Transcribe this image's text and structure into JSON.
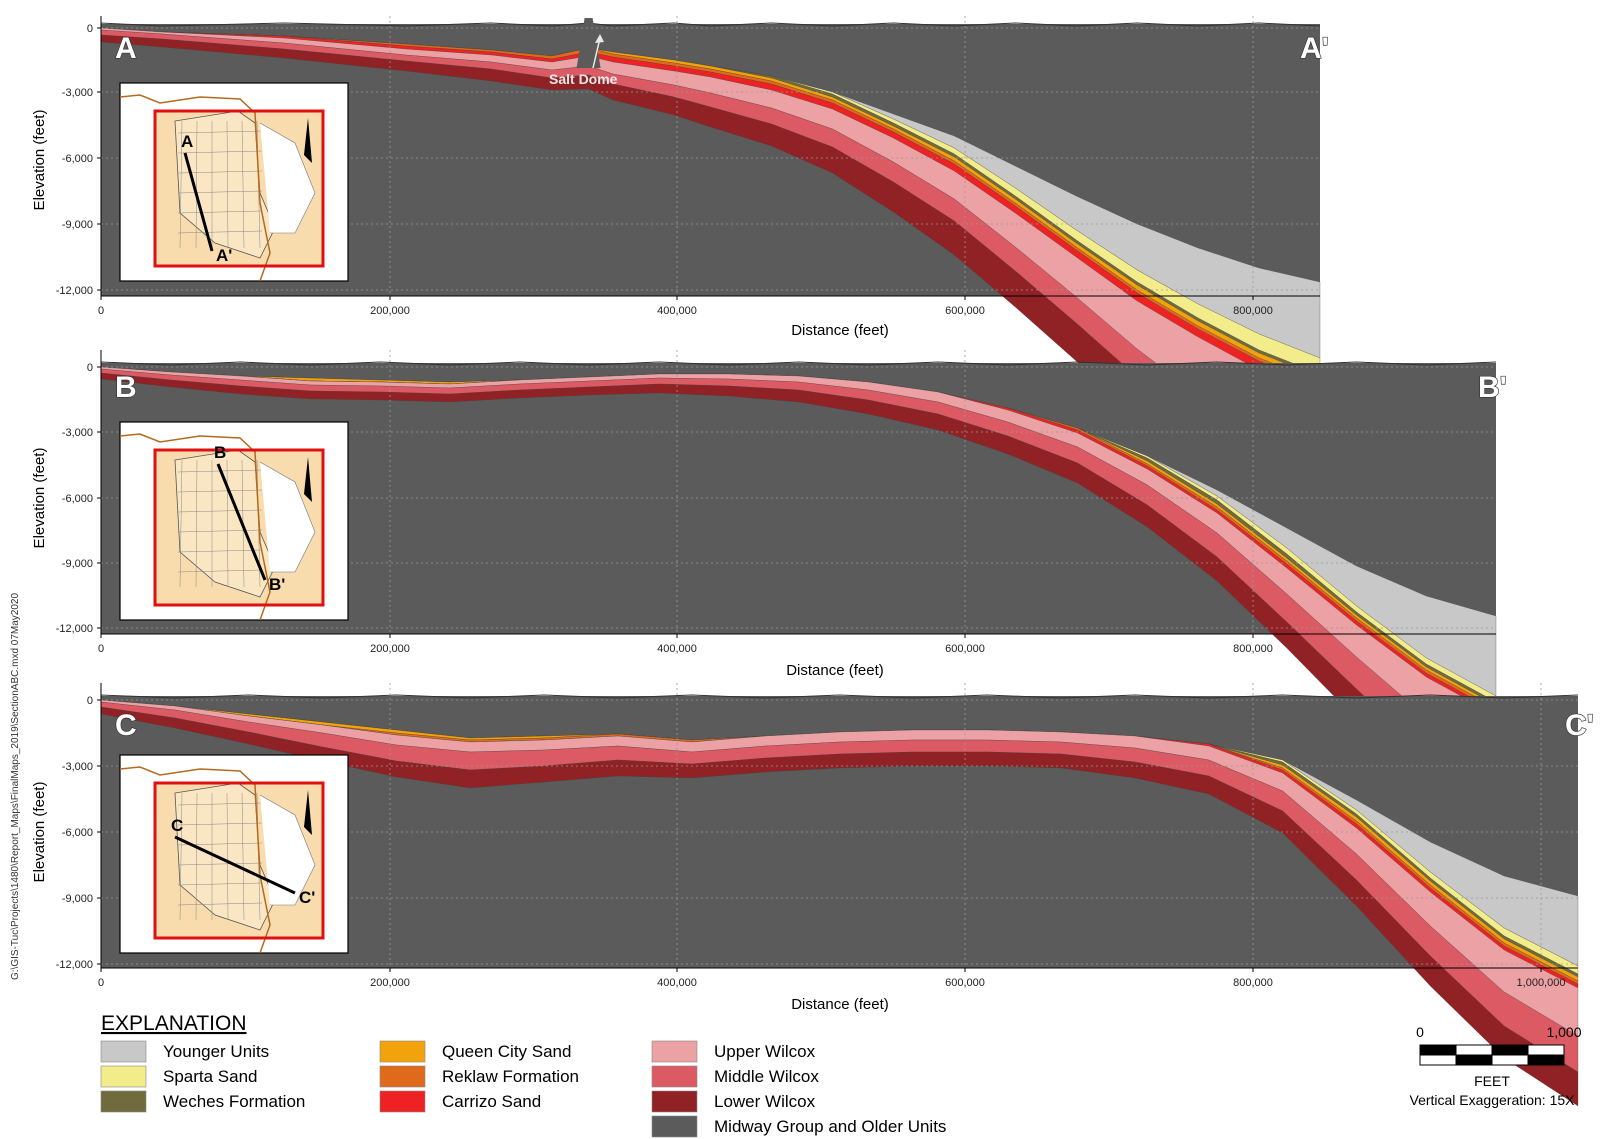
{
  "side_label": "G:\\GIS-Tuc\\Projects\\1480\\Report_Maps\\FinalMaps_2019\\SectionABC.mxd 07May2020",
  "colors": {
    "younger": "#c8c8c8",
    "sparta": "#f2ec8a",
    "weches": "#6f6b3c",
    "queen_city": "#f2a20a",
    "reklaw": "#e06a1c",
    "carrizo": "#ee2222",
    "upper_wilcox": "#eca1a4",
    "middle_wilcox": "#dc5a64",
    "lower_wilcox": "#902124",
    "midway": "#5b5b5b",
    "inset_land": "#f8dcae",
    "inset_frame": "#e01010"
  },
  "panels": [
    {
      "id": "A",
      "start_label": "A",
      "end_label": "A'",
      "ylabel": "Elevation (feet)",
      "xlabel": "Distance (feet)",
      "y_ticks": [
        "0",
        "-3,000",
        "-6,000",
        "-9,000",
        "-12,000"
      ],
      "x_ticks": [
        "0",
        "200,000",
        "400,000",
        "600,000",
        "800,000"
      ],
      "x_max": 860000,
      "annotation": "Salt Dome",
      "inset_start": "A",
      "inset_end": "A'"
    },
    {
      "id": "B",
      "start_label": "B",
      "end_label": "B'",
      "ylabel": "Elevation (feet)",
      "xlabel": "Distance (feet)",
      "y_ticks": [
        "0",
        "-3,000",
        "-6,000",
        "-9,000",
        "-12,000"
      ],
      "x_ticks": [
        "0",
        "200,000",
        "400,000",
        "600,000",
        "800,000"
      ],
      "x_max": 985000,
      "inset_start": "B",
      "inset_end": "B'"
    },
    {
      "id": "C",
      "start_label": "C",
      "end_label": "C'",
      "ylabel": "Elevation (feet)",
      "xlabel": "Distance (feet)",
      "y_ticks": [
        "0",
        "-3,000",
        "-6,000",
        "-9,000",
        "-12,000"
      ],
      "x_ticks": [
        "0",
        "200,000",
        "400,000",
        "600,000",
        "800,000",
        "1,000,000"
      ],
      "x_max": 1030000,
      "inset_start": "C",
      "inset_end": "C'"
    }
  ],
  "legend": {
    "title": "EXPLANATION",
    "items": [
      {
        "label": "Younger Units",
        "color_key": "younger"
      },
      {
        "label": "Sparta Sand",
        "color_key": "sparta"
      },
      {
        "label": "Weches Formation",
        "color_key": "weches"
      },
      {
        "label": "Queen City Sand",
        "color_key": "queen_city"
      },
      {
        "label": "Reklaw Formation",
        "color_key": "reklaw"
      },
      {
        "label": "Carrizo Sand",
        "color_key": "carrizo"
      },
      {
        "label": "Upper Wilcox",
        "color_key": "upper_wilcox"
      },
      {
        "label": "Middle Wilcox",
        "color_key": "middle_wilcox"
      },
      {
        "label": "Lower Wilcox",
        "color_key": "lower_wilcox"
      },
      {
        "label": "Midway Group and Older Units",
        "color_key": "midway"
      }
    ]
  },
  "scale": {
    "start": "0",
    "end": "1,000",
    "unit": "FEET",
    "exaggeration": "Vertical Exaggeration: 15X"
  }
}
